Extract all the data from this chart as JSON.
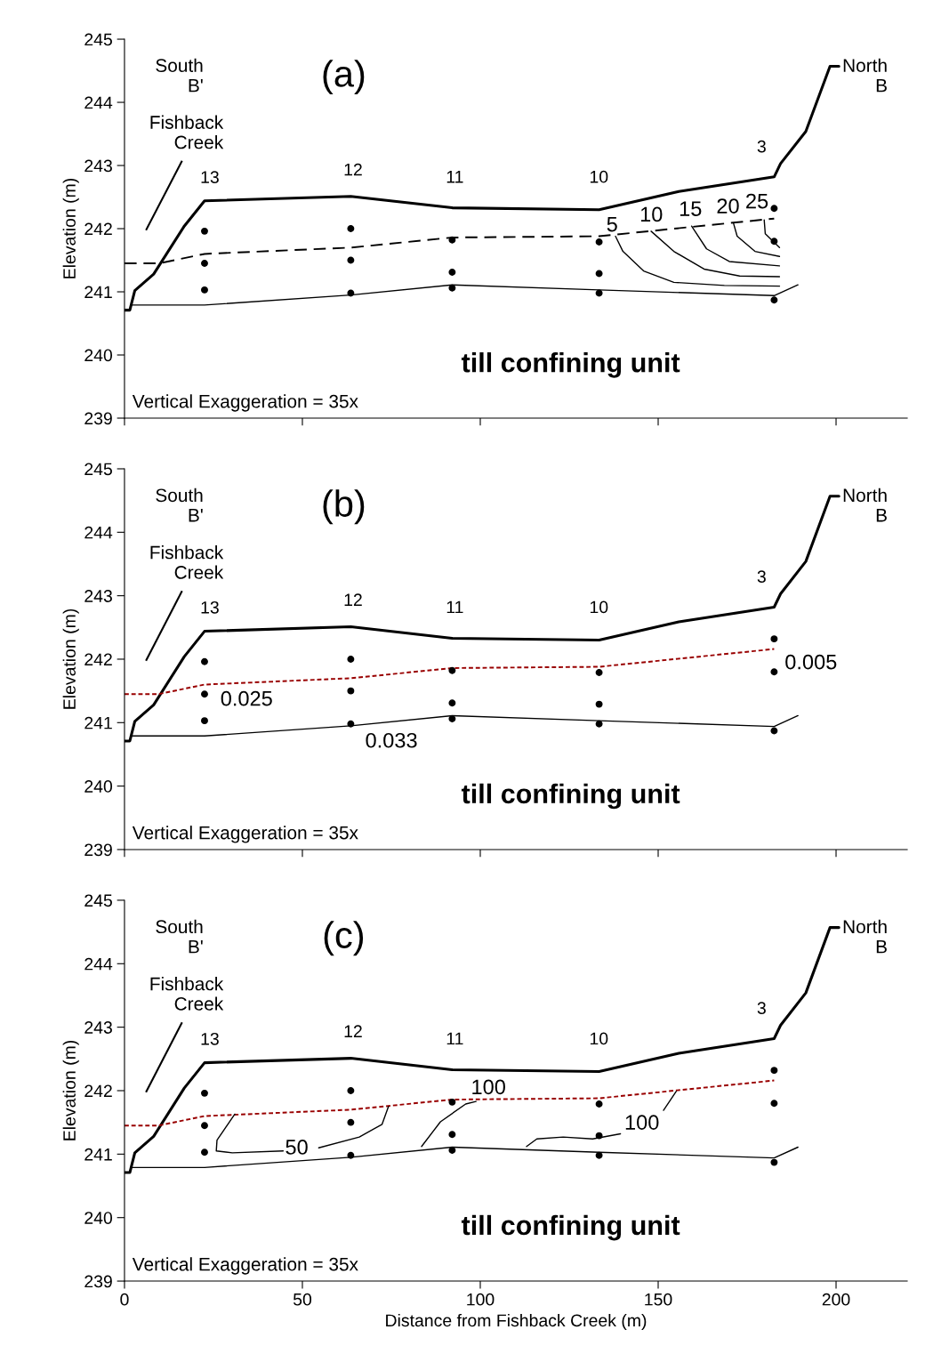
{
  "chart_data": [
    {
      "type": "line",
      "ylabel": "Elevation (m)",
      "xlim": [
        0,
        220
      ],
      "ylim": [
        239,
        245
      ],
      "xticks": [
        0,
        50,
        100,
        150,
        200
      ],
      "yticks": [
        239,
        240,
        241,
        242,
        243,
        244,
        245
      ],
      "tick_labels": "y",
      "annotations": [
        "(a)",
        "South\nB'",
        "North\nB",
        "till confining unit",
        "Vertical Exaggeration = 35x",
        "Fishback\nCreek",
        "13",
        "12",
        "11",
        "10",
        "3",
        "5",
        "10",
        "15",
        "20",
        "25"
      ],
      "series": [
        {
          "color": "#000000",
          "line_style": "solid",
          "x": [
            0,
            1.5,
            2.9,
            8.2,
            16.8,
            22.5,
            63.6,
            92.1,
            133.4,
            155.8,
            182.6,
            184.4,
            191.5,
            198.3,
            200.8
          ],
          "values": [
            240.71,
            240.71,
            241.02,
            241.28,
            242.04,
            242.44,
            242.51,
            242.33,
            242.3,
            242.59,
            242.82,
            243.03,
            243.54,
            244.57,
            244.57
          ]
        },
        {
          "color": "#000000",
          "line_style": "dashed",
          "x": [
            0,
            9.6,
            22.5,
            63.6,
            92.1,
            133.4,
            182.6
          ],
          "values": [
            241.45,
            241.45,
            241.6,
            241.7,
            241.86,
            241.88,
            242.16
          ]
        },
        {
          "color": "#000000",
          "line_style": "solid",
          "x": [
            1.7,
            22.5,
            63.6,
            92.1,
            133.4,
            182.6,
            189.3
          ],
          "values": [
            240.79,
            240.79,
            240.95,
            241.11,
            241.03,
            240.94,
            241.11
          ]
        },
        {
          "color": "#000000",
          "line_style": "solid",
          "x": [
            138,
            140.1,
            145.9,
            154.4,
            168.6,
            184.1
          ],
          "values": [
            241.88,
            241.64,
            241.33,
            241.15,
            241.1,
            241.09
          ]
        },
        {
          "color": "#000000",
          "line_style": "solid",
          "x": [
            148,
            154.4,
            162.9,
            172.9,
            184.1
          ],
          "values": [
            241.96,
            241.64,
            241.36,
            241.25,
            241.24
          ]
        },
        {
          "color": "#000000",
          "line_style": "solid",
          "x": [
            159.4,
            163.6,
            170,
            184.1
          ],
          "values": [
            242.04,
            241.68,
            241.48,
            241.41
          ]
        },
        {
          "color": "#000000",
          "line_style": "solid",
          "x": [
            171.2,
            172.2,
            177.2,
            184.1
          ],
          "values": [
            242.08,
            241.88,
            241.64,
            241.56
          ]
        },
        {
          "color": "#000000",
          "line_style": "solid",
          "x": [
            179.8,
            180.1,
            184.1
          ],
          "values": [
            242.14,
            241.92,
            241.7
          ]
        },
        {
          "type": "scatter",
          "color": "#000000",
          "marker": "circle",
          "x": [
            22.5,
            22.5,
            22.5,
            63.6,
            63.6,
            63.6,
            92.1,
            92.1,
            92.1,
            133.4,
            133.4,
            133.4,
            182.6,
            182.6,
            182.6
          ],
          "values": [
            241.96,
            241.45,
            241.03,
            242.0,
            241.5,
            240.98,
            241.82,
            241.31,
            241.06,
            241.79,
            241.29,
            240.98,
            242.32,
            241.8,
            240.87
          ]
        }
      ]
    },
    {
      "type": "line",
      "ylabel": "Elevation (m)",
      "xlim": [
        0,
        220
      ],
      "ylim": [
        239,
        245
      ],
      "xticks": [
        0,
        50,
        100,
        150,
        200
      ],
      "yticks": [
        239,
        240,
        241,
        242,
        243,
        244,
        245
      ],
      "tick_labels": "y",
      "annotations": [
        "(b)",
        "South\nB'",
        "North\nB",
        "till confining unit",
        "Vertical Exaggeration = 35x",
        "Fishback\nCreek",
        "13",
        "12",
        "11",
        "10",
        "3",
        "0.025",
        "0.033",
        "0.005"
      ],
      "series": [
        {
          "color": "#000000",
          "line_style": "solid",
          "x": [
            0,
            1.5,
            2.9,
            8.2,
            16.8,
            22.5,
            63.6,
            92.1,
            133.4,
            155.8,
            182.6,
            184.4,
            191.5,
            198.3,
            200.8
          ],
          "values": [
            240.71,
            240.71,
            241.02,
            241.28,
            242.04,
            242.44,
            242.51,
            242.33,
            242.3,
            242.59,
            242.82,
            243.03,
            243.54,
            244.57,
            244.57
          ]
        },
        {
          "color": "#990000",
          "line_style": "dotted",
          "x": [
            0,
            9.6,
            22.5,
            63.6,
            92.1,
            133.4,
            182.6
          ],
          "values": [
            241.45,
            241.45,
            241.6,
            241.7,
            241.86,
            241.88,
            242.16
          ]
        },
        {
          "color": "#000000",
          "line_style": "solid",
          "x": [
            1.7,
            22.5,
            63.6,
            92.1,
            133.4,
            182.6,
            189.3
          ],
          "values": [
            240.79,
            240.79,
            240.95,
            241.11,
            241.03,
            240.94,
            241.11
          ]
        },
        {
          "type": "scatter",
          "color": "#000000",
          "marker": "circle",
          "x": [
            22.5,
            22.5,
            22.5,
            63.6,
            63.6,
            63.6,
            92.1,
            92.1,
            92.1,
            133.4,
            133.4,
            133.4,
            182.6,
            182.6,
            182.6
          ],
          "values": [
            241.96,
            241.45,
            241.03,
            242.0,
            241.5,
            240.98,
            241.82,
            241.31,
            241.06,
            241.79,
            241.29,
            240.98,
            242.32,
            241.8,
            240.87
          ]
        }
      ]
    },
    {
      "type": "line",
      "xlabel": "Distance from Fishback Creek (m)",
      "ylabel": "Elevation (m)",
      "xlim": [
        0,
        220
      ],
      "ylim": [
        239,
        245
      ],
      "xticks": [
        0,
        50,
        100,
        150,
        200
      ],
      "yticks": [
        239,
        240,
        241,
        242,
        243,
        244,
        245
      ],
      "annotations": [
        "(c)",
        "South\nB'",
        "North\nB",
        "till confining unit",
        "Vertical Exaggeration = 35x",
        "Fishback\nCreek",
        "13",
        "12",
        "11",
        "10",
        "3",
        "50",
        "100",
        "100"
      ],
      "series": [
        {
          "color": "#000000",
          "line_style": "solid",
          "x": [
            0,
            1.5,
            2.9,
            8.2,
            16.8,
            22.5,
            63.6,
            92.1,
            133.4,
            155.8,
            182.6,
            184.4,
            191.5,
            198.3,
            200.8
          ],
          "values": [
            240.71,
            240.71,
            241.02,
            241.28,
            242.04,
            242.44,
            242.51,
            242.33,
            242.3,
            242.59,
            242.82,
            243.03,
            243.54,
            244.57,
            244.57
          ]
        },
        {
          "color": "#990000",
          "line_style": "dotted",
          "x": [
            0,
            9.6,
            22.5,
            63.6,
            92.1,
            133.4,
            182.6
          ],
          "values": [
            241.45,
            241.45,
            241.6,
            241.7,
            241.86,
            241.88,
            242.16
          ]
        },
        {
          "color": "#000000",
          "line_style": "solid",
          "x": [
            1.7,
            22.5,
            63.6,
            92.1,
            133.4,
            182.6,
            189.3
          ],
          "values": [
            240.79,
            240.79,
            240.95,
            241.11,
            241.03,
            240.94,
            241.11
          ]
        },
        {
          "color": "#000000",
          "line_style": "solid",
          "x": [
            31.0,
            26.0,
            25.8,
            30.3,
            44.6
          ],
          "values": [
            241.63,
            241.22,
            241.05,
            241.02,
            241.05
          ]
        },
        {
          "color": "#000000",
          "line_style": "solid",
          "x": [
            54.6,
            66.0,
            72.4,
            74.2
          ],
          "values": [
            241.1,
            241.27,
            241.47,
            241.75
          ]
        },
        {
          "color": "#000000",
          "line_style": "solid",
          "x": [
            83.5,
            88.8,
            95.9,
            98.8
          ],
          "values": [
            241.12,
            241.51,
            241.79,
            241.83
          ]
        },
        {
          "color": "#000000",
          "line_style": "solid",
          "x": [
            113.0,
            115.9,
            123.3,
            131.6,
            139.4
          ],
          "values": [
            241.12,
            241.24,
            241.27,
            241.24,
            241.32
          ]
        },
        {
          "color": "#000000",
          "line_style": "solid",
          "x": [
            151.5,
            155.1
          ],
          "values": [
            241.69,
            241.99
          ]
        },
        {
          "type": "scatter",
          "color": "#000000",
          "marker": "circle",
          "x": [
            22.5,
            22.5,
            22.5,
            63.6,
            63.6,
            63.6,
            92.1,
            92.1,
            92.1,
            133.4,
            133.4,
            133.4,
            182.6,
            182.6,
            182.6
          ],
          "values": [
            241.96,
            241.45,
            241.03,
            242.0,
            241.5,
            240.98,
            241.82,
            241.31,
            241.06,
            241.79,
            241.29,
            240.98,
            242.32,
            241.8,
            240.87
          ]
        }
      ]
    }
  ]
}
